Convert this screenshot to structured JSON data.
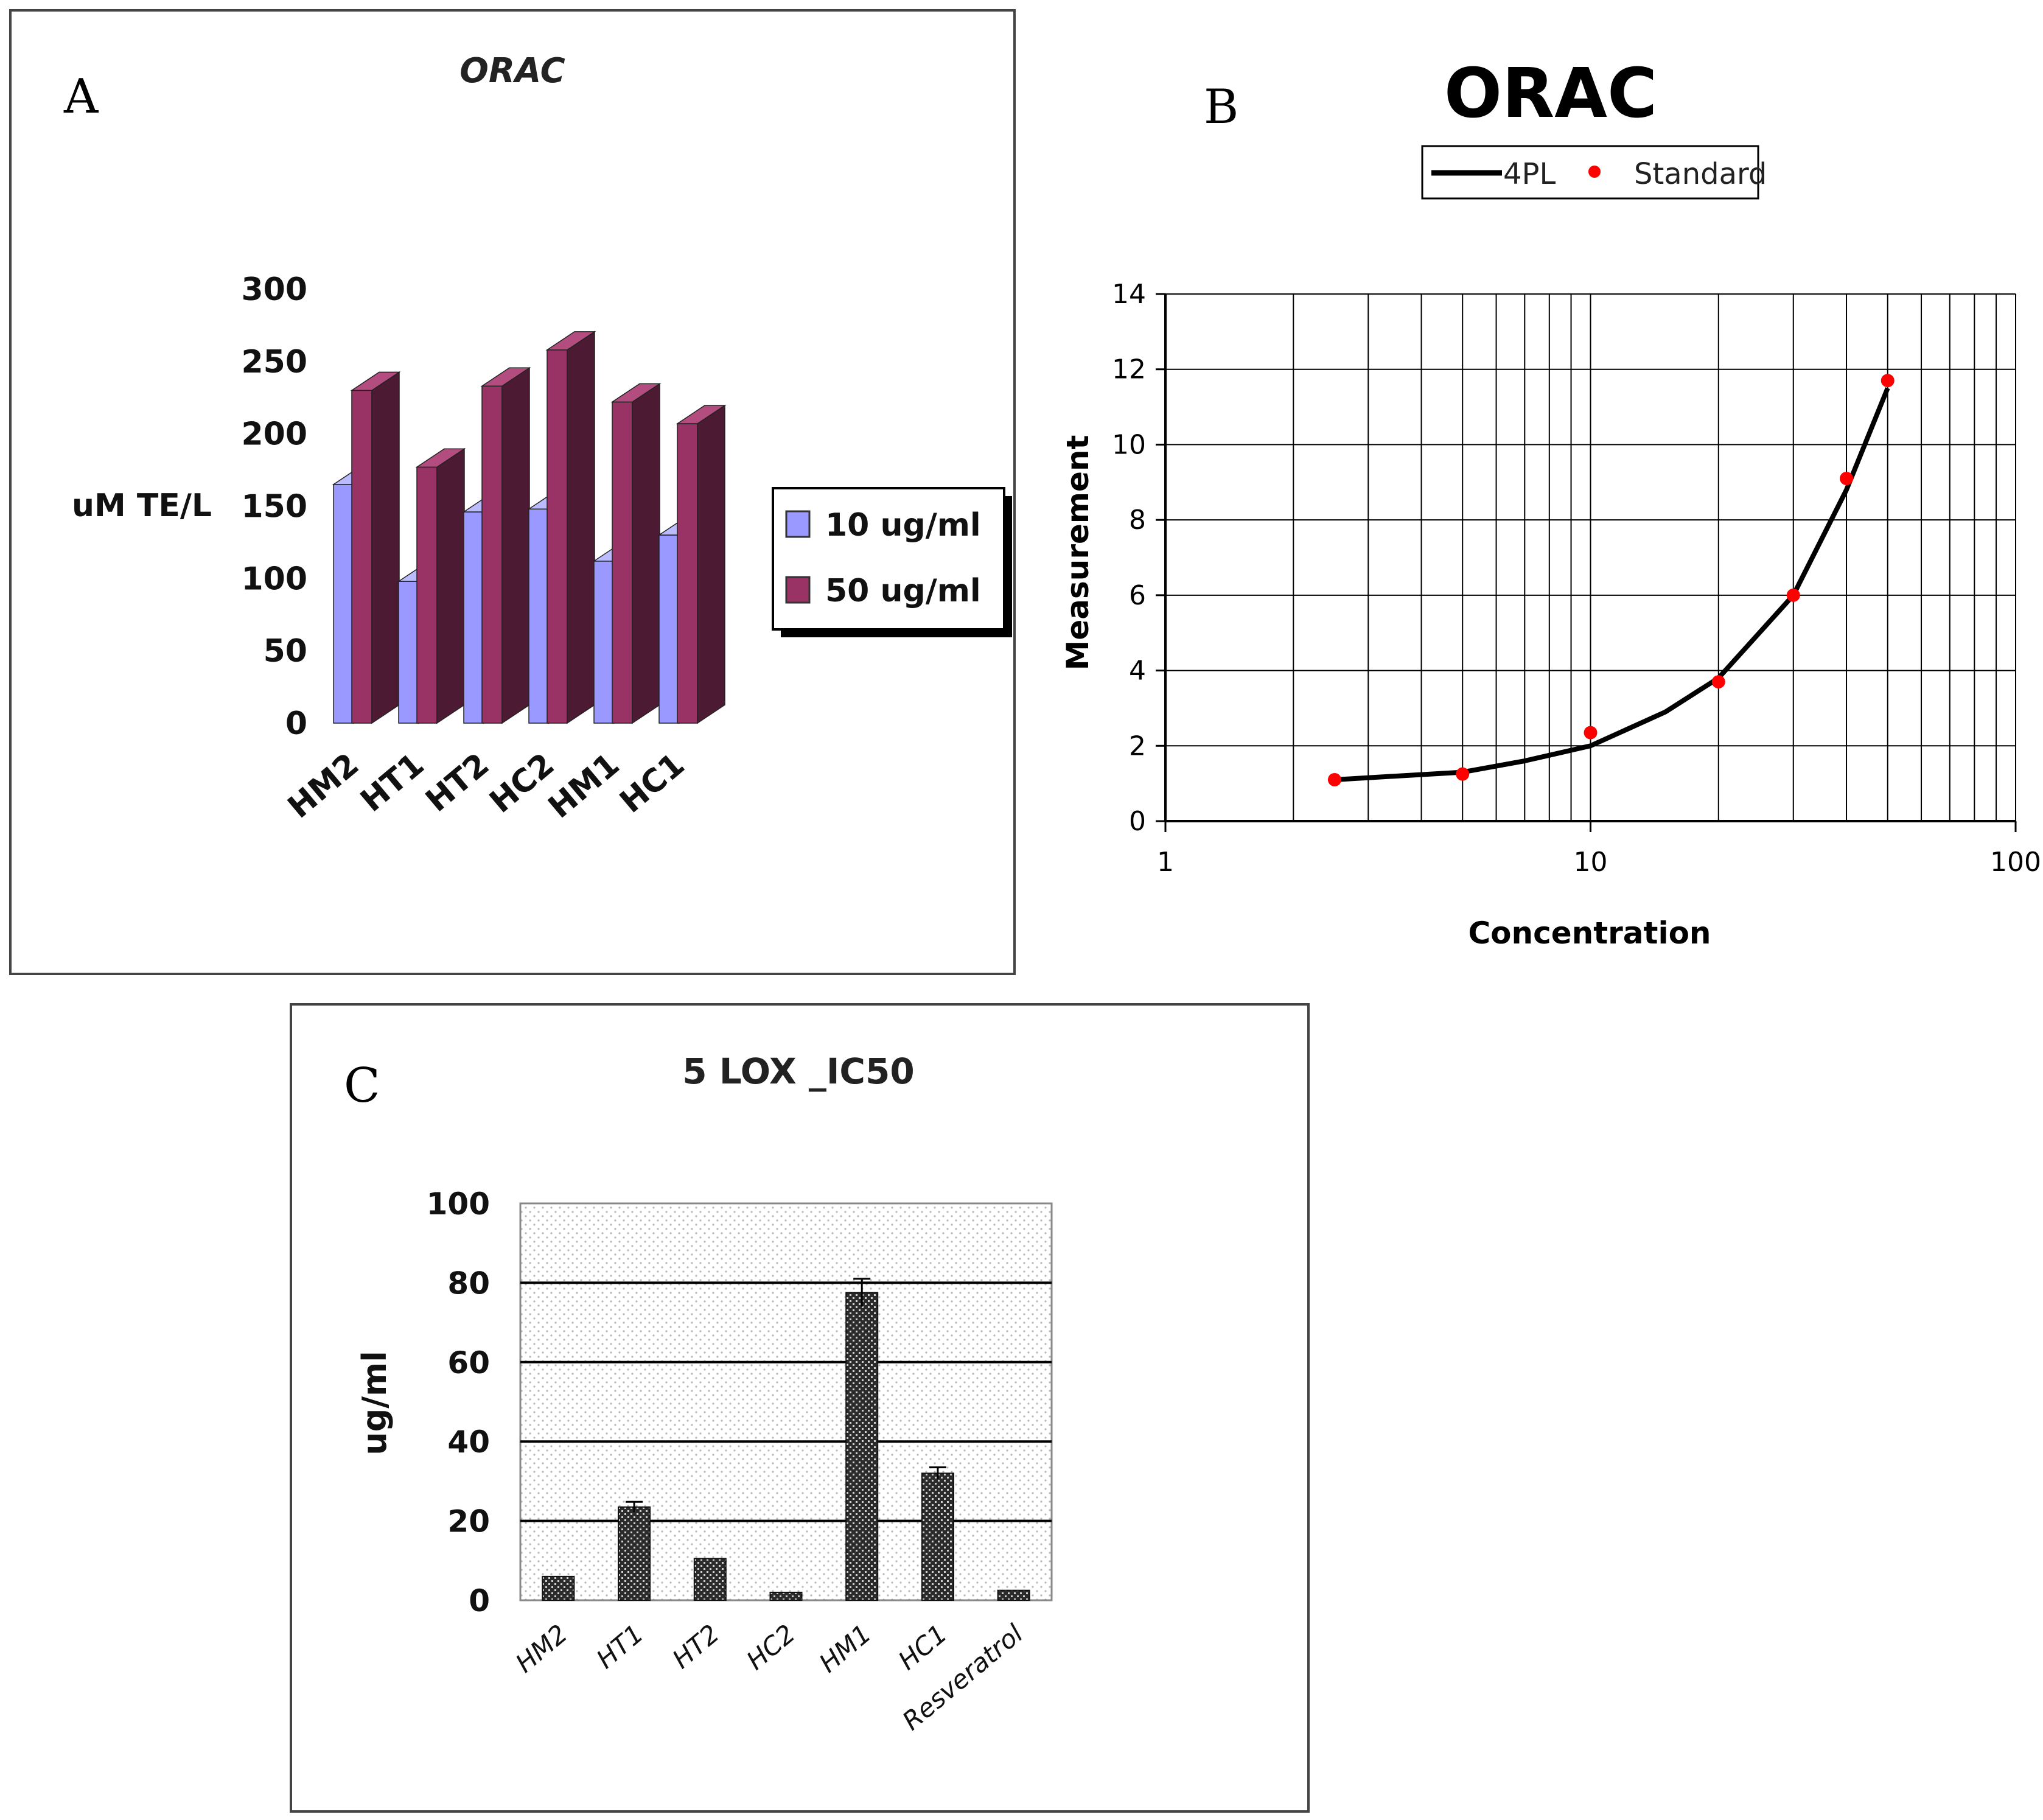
{
  "panels": {
    "a": {
      "letter": "A",
      "chart_data": {
        "type": "bar",
        "title": "ORAC",
        "ylabel": "uM TE/L",
        "ylim": [
          0,
          300
        ],
        "yticks": [
          0,
          50,
          100,
          150,
          200,
          250,
          300
        ],
        "categories": [
          "HM2",
          "HT1",
          "HT2",
          "HC2",
          "HM1",
          "HC1"
        ],
        "series": [
          {
            "name": "10 ug/ml",
            "values": [
              165,
              98,
              146,
              148,
              112,
              130
            ]
          },
          {
            "name": "50 ug/ml",
            "values": [
              230,
              177,
              233,
              258,
              222,
              207
            ]
          }
        ],
        "three_d": true,
        "legend": "right",
        "colors": {
          "front_10": "#9999ff",
          "side_10": "#6666cc",
          "top_10": "#bbbbff",
          "front_50": "#993366",
          "side_50": "#4d1a33",
          "top_50": "#b34d80"
        }
      }
    },
    "b": {
      "letter": "B",
      "chart_data": {
        "type": "scatter",
        "title": "ORAC",
        "xlabel": "Concentration",
        "ylabel": "Measurement",
        "xscale": "log",
        "xlim": [
          1,
          100
        ],
        "ylim": [
          0,
          14
        ],
        "xticks": [
          1,
          10,
          100
        ],
        "yticks": [
          0,
          2,
          4,
          6,
          8,
          10,
          12,
          14
        ],
        "grid": true,
        "legend": "top",
        "series": [
          {
            "name": "4PL",
            "kind": "line",
            "x": [
              2.5,
              5,
              7,
              10,
              15,
              20,
              30,
              40,
              50
            ],
            "y": [
              1.1,
              1.3,
              1.6,
              2.0,
              2.9,
              3.8,
              6.0,
              8.8,
              11.5
            ]
          },
          {
            "name": "Standard",
            "kind": "points",
            "x": [
              2.5,
              5,
              10,
              20,
              30,
              40,
              50
            ],
            "y": [
              1.1,
              1.25,
              2.35,
              3.7,
              6.0,
              9.1,
              11.7
            ]
          }
        ],
        "colors": {
          "curve": "#000000",
          "points": "#ff0000"
        }
      }
    },
    "c": {
      "letter": "C",
      "chart_data": {
        "type": "bar",
        "title": "5 LOX _IC50",
        "ylabel": "ug/ml",
        "ylim": [
          0,
          100
        ],
        "yticks": [
          0,
          20,
          40,
          60,
          80,
          100
        ],
        "categories": [
          "HM2",
          "HT1",
          "HT2",
          "HC2",
          "HM1",
          "HC1",
          "Resveratrol"
        ],
        "values": [
          6,
          23.5,
          10.5,
          2,
          77.5,
          32,
          2.5
        ],
        "errors": [
          0,
          1.3,
          0,
          0,
          3.5,
          1.5,
          0
        ],
        "colors": {
          "bar": "#555555",
          "plot_bg": "#f2f2f2"
        }
      }
    }
  }
}
